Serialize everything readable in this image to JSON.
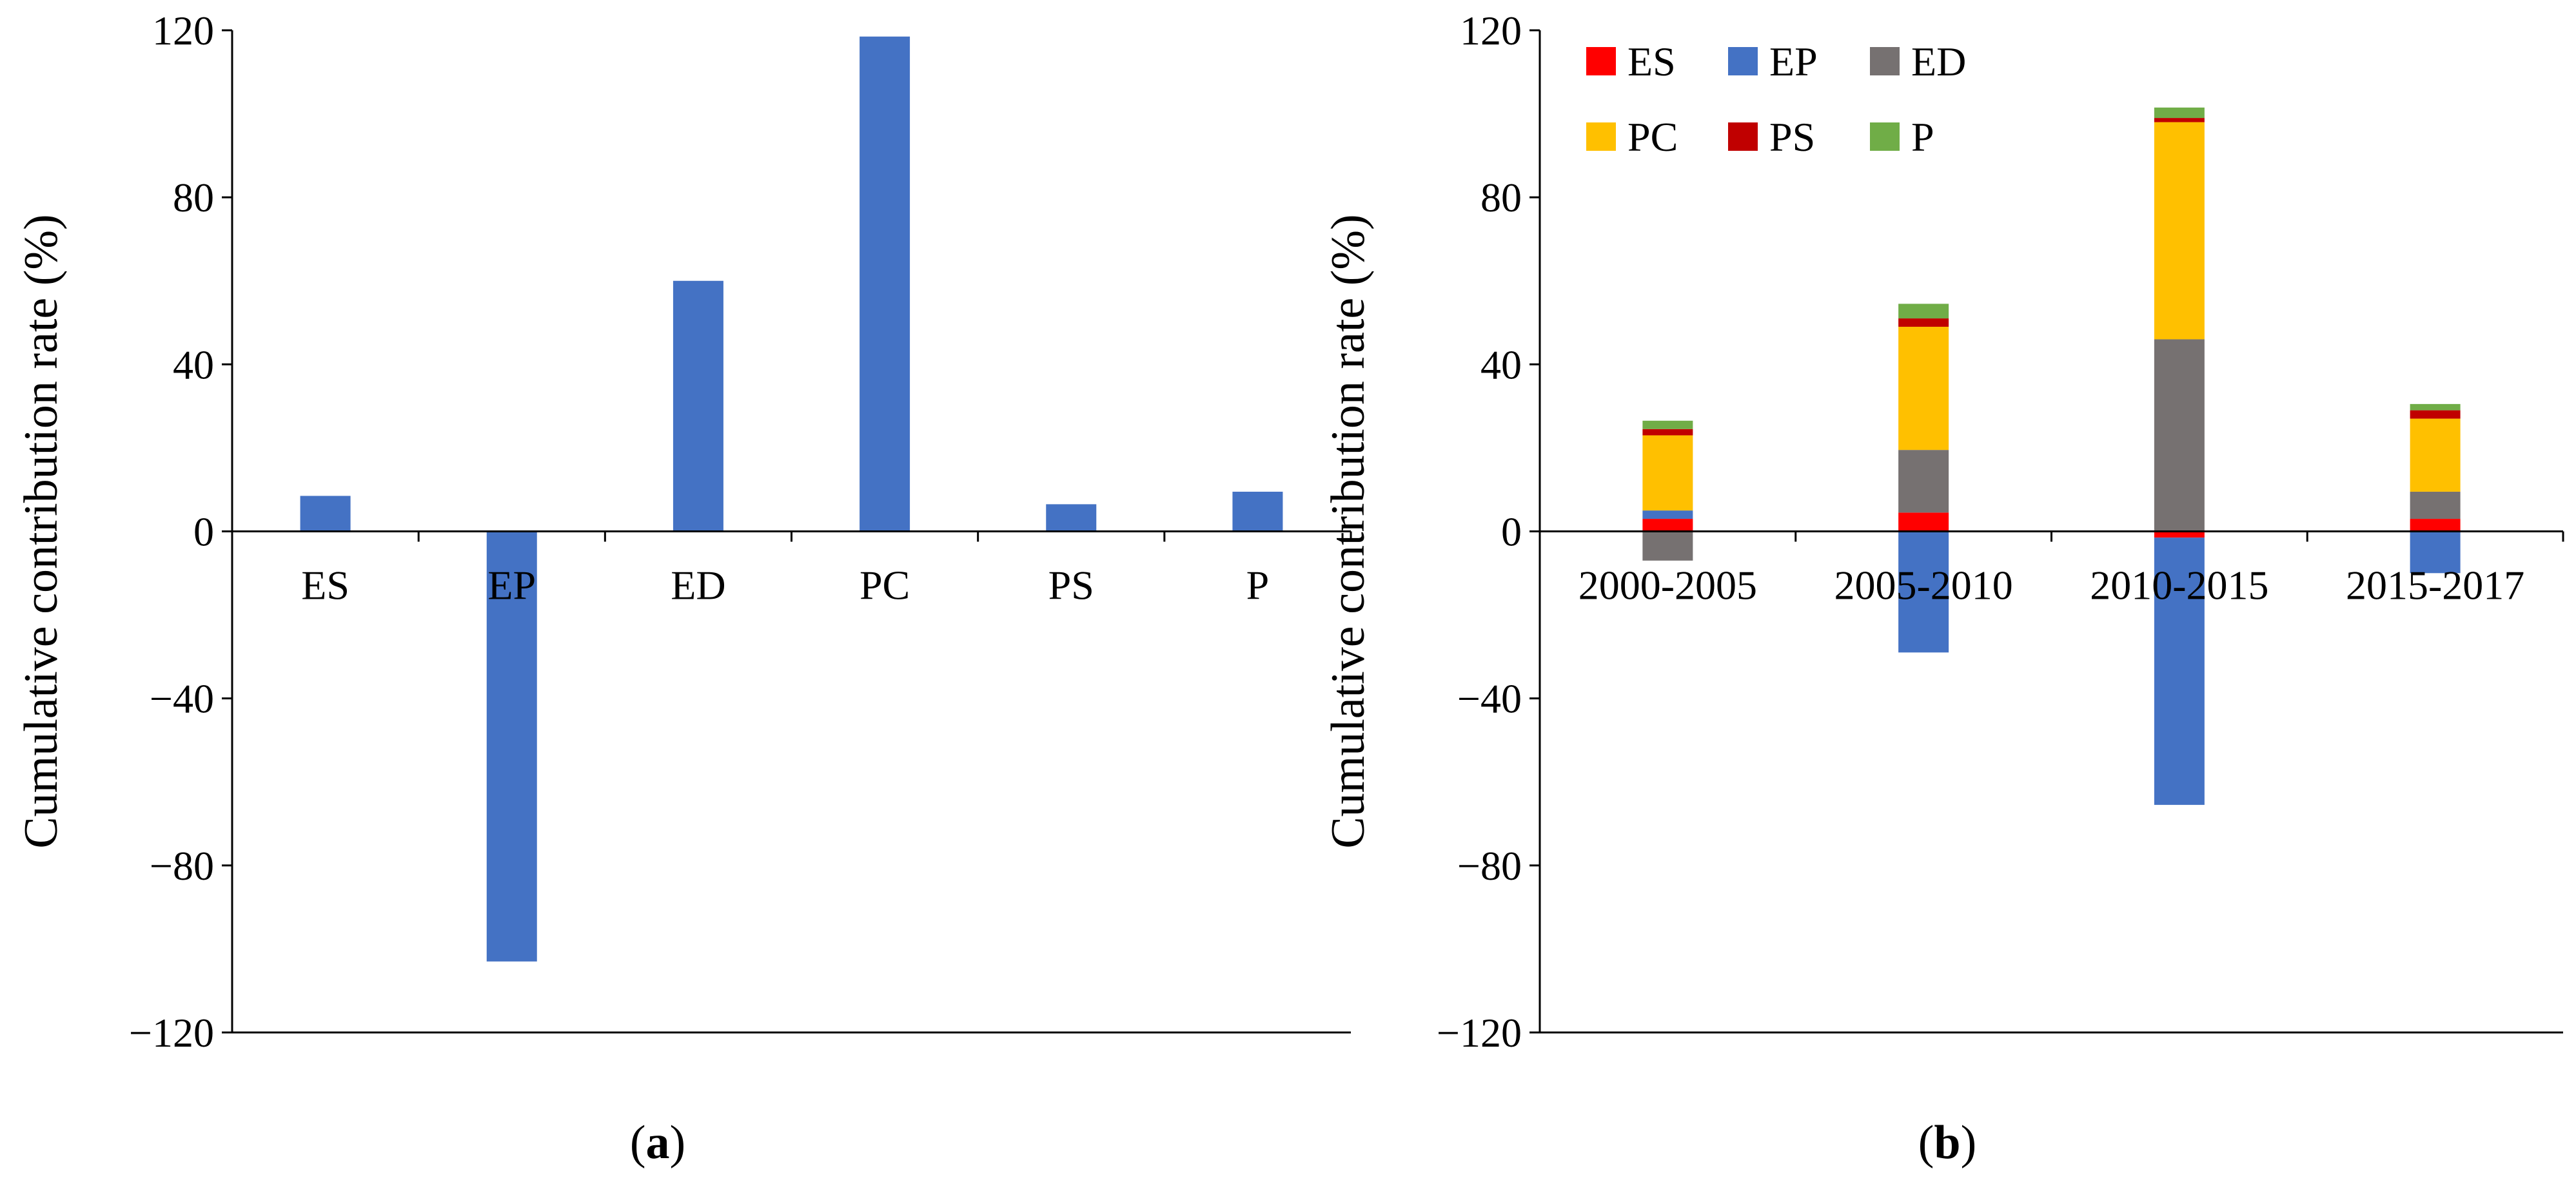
{
  "figure": {
    "panel_a_label_open": "(",
    "panel_a_label": "a",
    "panel_a_label_close": ")",
    "panel_b_label_open": "(",
    "panel_b_label": "b",
    "panel_b_label_close": ")"
  },
  "colors": {
    "ES": "#ff0000",
    "EP": "#4472c4",
    "ED": "#767171",
    "PC": "#ffc000",
    "PS": "#c00000",
    "P": "#70ad47",
    "axis": "#000000"
  },
  "chart_data": [
    {
      "id": "a",
      "type": "bar",
      "title": "",
      "xlabel": "",
      "ylabel": "Cumulative contribution rate (%)",
      "ylim": [
        -120,
        120
      ],
      "yticks": [
        -120,
        -80,
        -40,
        0,
        40,
        80,
        120
      ],
      "ytick_labels": [
        "−120",
        "−80",
        "−40",
        "0",
        "40",
        "80",
        "120"
      ],
      "grid": false,
      "categories": [
        "ES",
        "EP",
        "ED",
        "PC",
        "PS",
        "P"
      ],
      "values": [
        8.5,
        -103,
        60,
        118.5,
        6.5,
        9.5
      ]
    },
    {
      "id": "b",
      "type": "bar",
      "stacked": true,
      "title": "",
      "xlabel": "",
      "ylabel": "Cumulative contribution rate (%)",
      "ylim": [
        -120,
        120
      ],
      "yticks": [
        -120,
        -80,
        -40,
        0,
        40,
        80,
        120
      ],
      "ytick_labels": [
        "−120",
        "−80",
        "−40",
        "0",
        "40",
        "80",
        "120"
      ],
      "grid": false,
      "legend_position": "top-left",
      "categories": [
        "2000-2005",
        "2005-2010",
        "2010-2015",
        "2015-2017"
      ],
      "series": [
        {
          "name": "ES",
          "values": [
            3.0,
            4.5,
            -1.5,
            3.0
          ]
        },
        {
          "name": "EP",
          "values": [
            2.0,
            -29.0,
            -64.0,
            -10.0
          ]
        },
        {
          "name": "ED",
          "values": [
            -7.0,
            15.0,
            46.0,
            6.5
          ]
        },
        {
          "name": "PC",
          "values": [
            18.0,
            29.5,
            52.0,
            17.5
          ]
        },
        {
          "name": "PS",
          "values": [
            1.5,
            2.0,
            1.0,
            2.0
          ]
        },
        {
          "name": "P",
          "values": [
            2.0,
            3.5,
            2.5,
            1.5
          ]
        }
      ]
    }
  ]
}
